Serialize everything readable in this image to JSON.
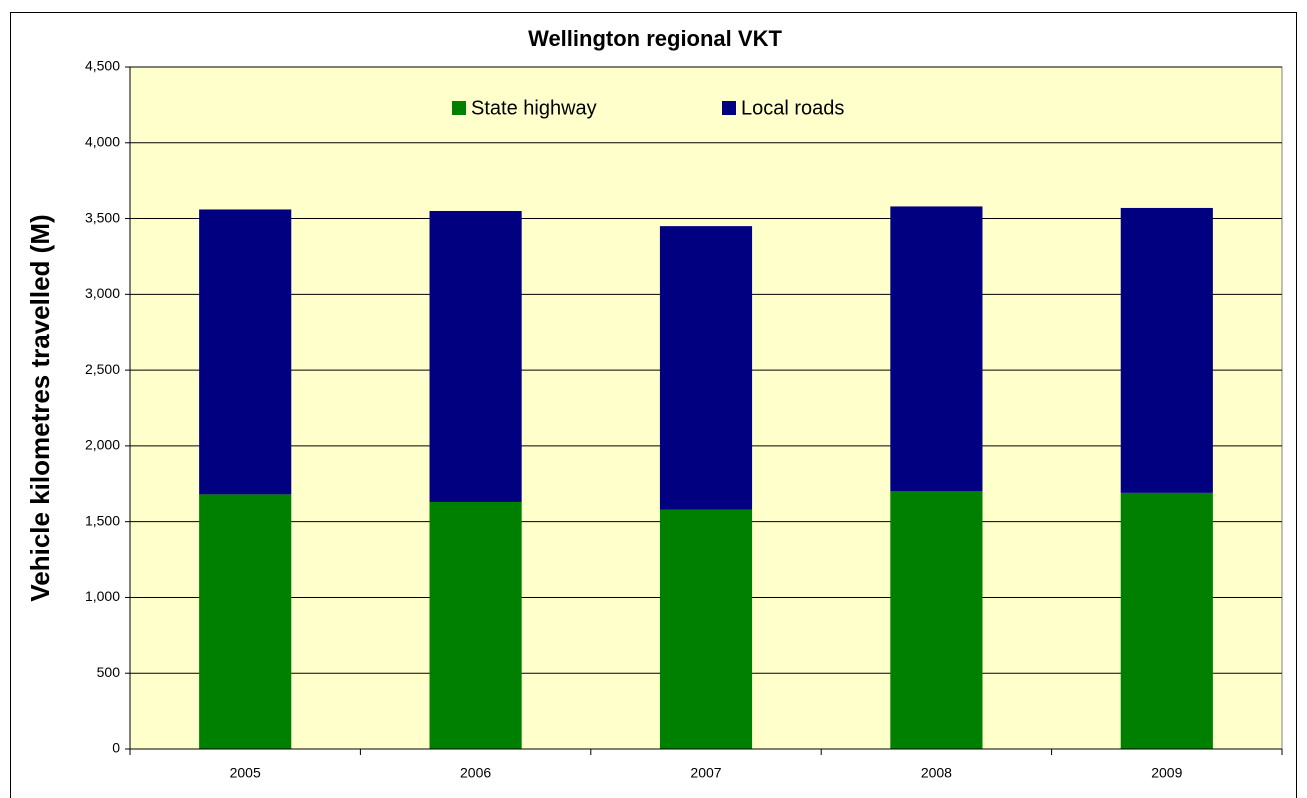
{
  "chart_data": {
    "type": "stacked_bar",
    "title": "Wellington regional VKT",
    "y_label": "Vehicle kilometres travelled (M)",
    "categories": [
      "2005",
      "2006",
      "2007",
      "2008",
      "2009"
    ],
    "series": [
      {
        "name": "State highway",
        "color": "#008000",
        "values": [
          1680,
          1630,
          1580,
          1700,
          1690
        ]
      },
      {
        "name": "Local roads",
        "color": "#000080",
        "values": [
          1880,
          1920,
          1870,
          1880,
          1880
        ]
      }
    ],
    "ylim": [
      0,
      4500
    ],
    "yticks": [
      0,
      500,
      {
        "value": 1000,
        "label": "1,000"
      },
      {
        "value": 1500,
        "label": "1,500"
      },
      {
        "value": 2000,
        "label": "2,000"
      },
      {
        "value": 2500,
        "label": "2,500"
      },
      {
        "value": 3000,
        "label": "3,000"
      },
      {
        "value": 3500,
        "label": "3,500"
      },
      {
        "value": 4000,
        "label": "4,000"
      },
      {
        "value": 4500,
        "label": "4,500"
      }
    ],
    "grid": true,
    "legend": "top",
    "plot_background": "#ffffcc"
  }
}
